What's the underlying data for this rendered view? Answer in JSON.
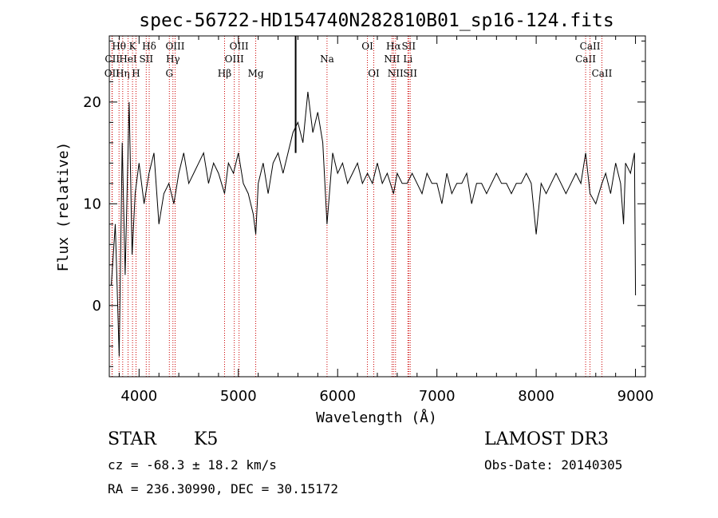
{
  "chart_data": {
    "type": "line",
    "title": "spec-56722-HD154740N282810B01_sp16-124.fits",
    "xlabel": "Wavelength (Å)",
    "ylabel": "Flux (relative)",
    "xlim": [
      3700,
      9100
    ],
    "ylim": [
      -7,
      26.5
    ],
    "xticks": [
      4000,
      5000,
      6000,
      7000,
      8000,
      9000
    ],
    "yticks": [
      0,
      10,
      20
    ],
    "grid": false,
    "series": [
      {
        "name": "spectrum",
        "x": [
          3720,
          3760,
          3800,
          3830,
          3860,
          3900,
          3930,
          3960,
          4000,
          4050,
          4100,
          4150,
          4200,
          4250,
          4300,
          4350,
          4400,
          4450,
          4500,
          4550,
          4600,
          4650,
          4700,
          4750,
          4800,
          4861,
          4900,
          4950,
          5000,
          5050,
          5100,
          5150,
          5175,
          5200,
          5250,
          5300,
          5350,
          5400,
          5450,
          5500,
          5550,
          5600,
          5650,
          5700,
          5750,
          5800,
          5850,
          5893,
          5950,
          6000,
          6050,
          6100,
          6150,
          6200,
          6250,
          6300,
          6350,
          6400,
          6450,
          6500,
          6563,
          6600,
          6650,
          6700,
          6750,
          6800,
          6850,
          6900,
          6950,
          7000,
          7050,
          7100,
          7150,
          7200,
          7250,
          7300,
          7350,
          7400,
          7450,
          7500,
          7550,
          7600,
          7650,
          7700,
          7750,
          7800,
          7850,
          7900,
          7950,
          8000,
          8050,
          8100,
          8150,
          8200,
          8250,
          8300,
          8350,
          8400,
          8450,
          8498,
          8542,
          8600,
          8662,
          8700,
          8750,
          8800,
          8850,
          8880,
          8900,
          8950,
          8990,
          9000
        ],
        "values": [
          2,
          8,
          -5,
          16,
          3,
          20,
          5,
          11,
          14,
          10,
          13,
          15,
          8,
          11,
          12,
          10,
          13,
          15,
          12,
          13,
          14,
          15,
          12,
          14,
          13,
          11,
          14,
          13,
          15,
          12,
          11,
          9,
          7,
          12,
          14,
          11,
          14,
          15,
          13,
          15,
          17,
          18,
          16,
          21,
          17,
          19,
          16,
          8,
          15,
          13,
          14,
          12,
          13,
          14,
          12,
          13,
          12,
          14,
          12,
          13,
          11,
          13,
          12,
          12,
          13,
          12,
          11,
          13,
          12,
          12,
          10,
          13,
          11,
          12,
          12,
          13,
          10,
          12,
          12,
          11,
          12,
          13,
          12,
          12,
          11,
          12,
          12,
          13,
          12,
          7,
          12,
          11,
          12,
          13,
          12,
          11,
          12,
          13,
          12,
          15,
          11,
          10,
          12,
          13,
          11,
          14,
          12,
          8,
          14,
          13,
          15,
          1
        ]
      }
    ],
    "spikes": [
      {
        "x": 5577,
        "y": 27
      }
    ],
    "lines": [
      {
        "name": "O II",
        "label": "OII",
        "x": 3727,
        "row": 3
      },
      {
        "name": "C II",
        "label": "CII",
        "x": 3730,
        "row": 2
      },
      {
        "name": "H theta",
        "label": "Hθ",
        "x": 3798,
        "row": 1
      },
      {
        "name": "H eta",
        "label": "Hη",
        "x": 3835,
        "row": 3
      },
      {
        "name": "He I",
        "label": "HeI",
        "x": 3889,
        "row": 2
      },
      {
        "name": "K",
        "label": "K",
        "x": 3934,
        "row": 1
      },
      {
        "name": "H",
        "label": "H",
        "x": 3969,
        "row": 3
      },
      {
        "name": "S II",
        "label": "SII",
        "x": 4072,
        "row": 2
      },
      {
        "name": "H delta",
        "label": "Hδ",
        "x": 4102,
        "row": 1
      },
      {
        "name": "G",
        "label": "G",
        "x": 4305,
        "row": 3
      },
      {
        "name": "H gamma",
        "label": "Hγ",
        "x": 4341,
        "row": 2
      },
      {
        "name": "O III 4363",
        "label": "OIII",
        "x": 4363,
        "row": 1
      },
      {
        "name": "H beta",
        "label": "Hβ",
        "x": 4861,
        "row": 3
      },
      {
        "name": "O III 4959",
        "label": "OIII",
        "x": 4959,
        "row": 2
      },
      {
        "name": "O III 5007",
        "label": "OIII",
        "x": 5007,
        "row": 1
      },
      {
        "name": "Mg",
        "label": "Mg",
        "x": 5175,
        "row": 3
      },
      {
        "name": "Na",
        "label": "Na",
        "x": 5893,
        "row": 2
      },
      {
        "name": "O I 6300",
        "label": "OI",
        "x": 6300,
        "row": 1
      },
      {
        "name": "O I 6364",
        "label": "OI",
        "x": 6364,
        "row": 3
      },
      {
        "name": "N II 6548",
        "label": "NII",
        "x": 6548,
        "row": 2
      },
      {
        "name": "H alpha",
        "label": "Hα",
        "x": 6563,
        "row": 1
      },
      {
        "name": "N II 6583",
        "label": "NII",
        "x": 6583,
        "row": 3
      },
      {
        "name": "Li",
        "label": "Li",
        "x": 6708,
        "row": 2
      },
      {
        "name": "S II 6716",
        "label": "SII",
        "x": 6716,
        "row": 1
      },
      {
        "name": "S II 6731",
        "label": "SII",
        "x": 6731,
        "row": 3
      },
      {
        "name": "Ca II 8498",
        "label": "CaII",
        "x": 8498,
        "row": 2
      },
      {
        "name": "Ca II 8542",
        "label": "CaII",
        "x": 8542,
        "row": 1
      },
      {
        "name": "Ca II 8662",
        "label": "CaII",
        "x": 8662,
        "row": 3
      }
    ]
  },
  "info": {
    "class_label": "STAR",
    "subclass": "K5",
    "survey": "LAMOST DR3",
    "redshift": "cz = -68.3 ± 18.2 km/s",
    "obs_date": "Obs-Date: 20140305",
    "coords": "RA = 236.30990, DEC =  30.15172"
  },
  "colors": {
    "axis": "#000000",
    "spectrum": "#000000",
    "line_marker": "#cc0000"
  }
}
